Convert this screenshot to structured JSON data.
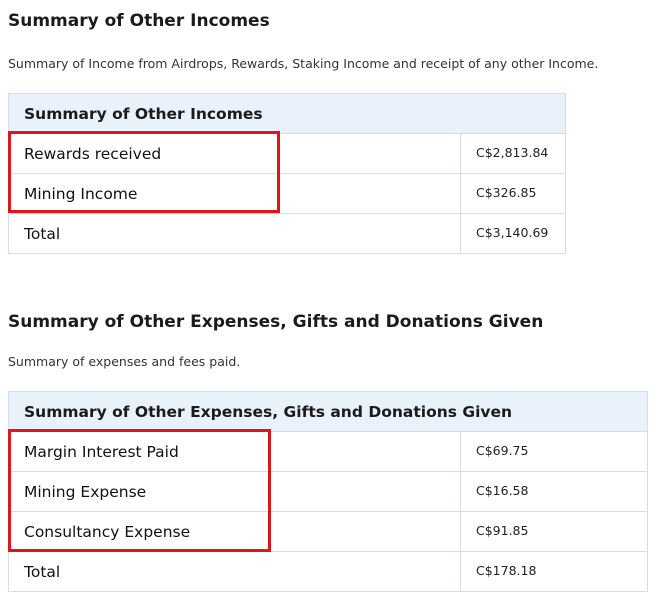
{
  "incomes": {
    "title": "Summary of Other Incomes",
    "description": "Summary of Income from Airdrops, Rewards, Staking Income and receipt of any other Income.",
    "table_header": "Summary of Other Incomes",
    "rows": [
      {
        "label": "Rewards received",
        "amount": "C$2,813.84"
      },
      {
        "label": "Mining Income",
        "amount": "C$326.85"
      },
      {
        "label": "Total",
        "amount": "C$3,140.69"
      }
    ]
  },
  "expenses": {
    "title": "Summary of Other Expenses, Gifts and Donations Given",
    "description": "Summary of expenses and fees paid.",
    "table_header": "Summary of Other Expenses, Gifts and Donations Given",
    "rows": [
      {
        "label": "Margin Interest Paid",
        "amount": "C$69.75"
      },
      {
        "label": "Mining Expense",
        "amount": "C$16.58"
      },
      {
        "label": "Consultancy Expense",
        "amount": "C$91.85"
      },
      {
        "label": "Total",
        "amount": "C$178.18"
      }
    ]
  },
  "colors": {
    "highlight_border": "#e0151b",
    "header_background": "#e9f1fb",
    "table_border": "#d7dde6"
  }
}
